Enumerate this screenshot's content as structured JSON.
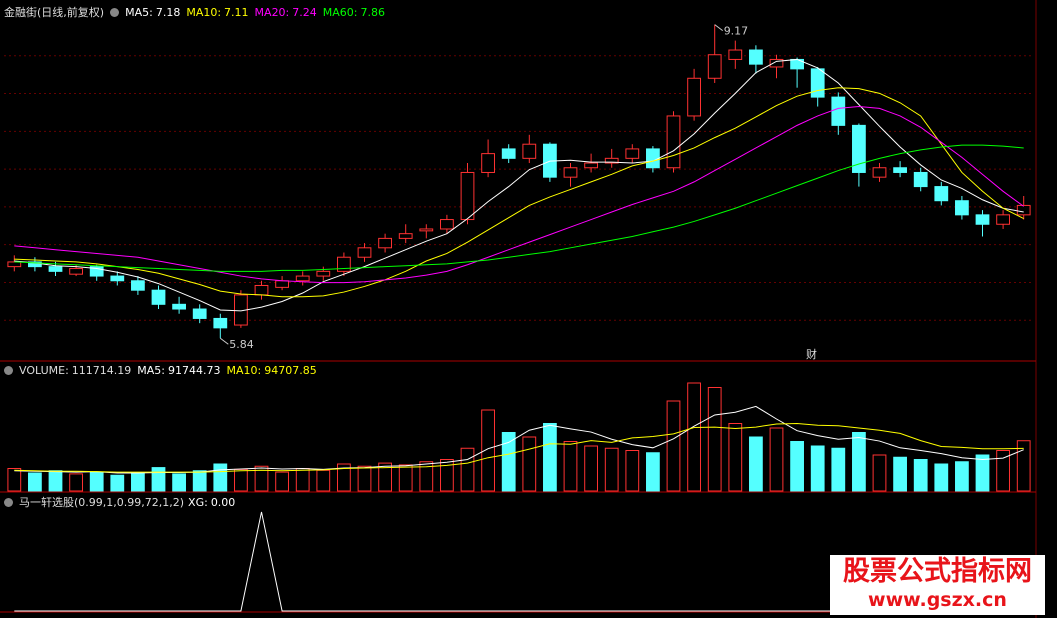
{
  "chart_data": [
    {
      "type": "candlestick",
      "title": "金融街(日线,前复权)",
      "up_color": "#ff3232",
      "down_color": "#54ffff",
      "ylim": [
        5.63,
        9.24
      ],
      "grid": true,
      "badge": "财",
      "candles": [
        [
          6.6,
          6.72,
          6.55,
          6.65
        ],
        [
          6.65,
          6.7,
          6.55,
          6.6
        ],
        [
          6.6,
          6.65,
          6.5,
          6.55
        ],
        [
          6.52,
          6.62,
          6.5,
          6.58
        ],
        [
          6.6,
          6.62,
          6.45,
          6.5
        ],
        [
          6.5,
          6.55,
          6.4,
          6.45
        ],
        [
          6.45,
          6.5,
          6.3,
          6.35
        ],
        [
          6.35,
          6.4,
          6.15,
          6.2
        ],
        [
          6.2,
          6.28,
          6.1,
          6.15
        ],
        [
          6.15,
          6.2,
          6.0,
          6.05
        ],
        [
          6.05,
          6.1,
          5.84,
          5.95
        ],
        [
          5.98,
          6.35,
          5.95,
          6.3
        ],
        [
          6.3,
          6.45,
          6.25,
          6.4
        ],
        [
          6.38,
          6.5,
          6.35,
          6.45
        ],
        [
          6.45,
          6.55,
          6.4,
          6.5
        ],
        [
          6.5,
          6.6,
          6.45,
          6.55
        ],
        [
          6.55,
          6.75,
          6.5,
          6.7
        ],
        [
          6.7,
          6.85,
          6.65,
          6.8
        ],
        [
          6.8,
          6.95,
          6.75,
          6.9
        ],
        [
          6.9,
          7.05,
          6.85,
          6.95
        ],
        [
          6.98,
          7.05,
          6.9,
          7.0
        ],
        [
          7.0,
          7.15,
          6.95,
          7.1
        ],
        [
          7.1,
          7.7,
          7.05,
          7.6
        ],
        [
          7.6,
          7.95,
          7.55,
          7.8
        ],
        [
          7.85,
          7.9,
          7.7,
          7.75
        ],
        [
          7.75,
          8.0,
          7.7,
          7.9
        ],
        [
          7.9,
          7.92,
          7.5,
          7.55
        ],
        [
          7.55,
          7.7,
          7.45,
          7.65
        ],
        [
          7.65,
          7.8,
          7.6,
          7.7
        ],
        [
          7.7,
          7.85,
          7.65,
          7.75
        ],
        [
          7.75,
          7.9,
          7.7,
          7.85
        ],
        [
          7.85,
          7.88,
          7.6,
          7.65
        ],
        [
          7.65,
          8.25,
          7.6,
          8.2
        ],
        [
          8.2,
          8.7,
          8.15,
          8.6
        ],
        [
          8.6,
          9.17,
          8.55,
          8.85
        ],
        [
          8.8,
          9.0,
          8.7,
          8.9
        ],
        [
          8.9,
          8.95,
          8.65,
          8.75
        ],
        [
          8.72,
          8.85,
          8.6,
          8.8
        ],
        [
          8.8,
          8.82,
          8.5,
          8.7
        ],
        [
          8.7,
          8.72,
          8.3,
          8.4
        ],
        [
          8.4,
          8.45,
          8.0,
          8.1
        ],
        [
          8.1,
          8.12,
          7.45,
          7.6
        ],
        [
          7.55,
          7.7,
          7.5,
          7.65
        ],
        [
          7.65,
          7.72,
          7.55,
          7.6
        ],
        [
          7.6,
          7.65,
          7.4,
          7.45
        ],
        [
          7.45,
          7.5,
          7.25,
          7.3
        ],
        [
          7.3,
          7.35,
          7.1,
          7.15
        ],
        [
          7.15,
          7.2,
          6.92,
          7.05
        ],
        [
          7.05,
          7.2,
          7.0,
          7.15
        ],
        [
          7.15,
          7.35,
          7.1,
          7.25
        ]
      ],
      "series": [
        {
          "name": "MA5:",
          "value_label": "7.18",
          "color": "#ffffff",
          "values": [
            6.66,
            6.64,
            6.61,
            6.6,
            6.58,
            6.54,
            6.49,
            6.42,
            6.33,
            6.24,
            6.14,
            6.13,
            6.17,
            6.23,
            6.32,
            6.44,
            6.52,
            6.6,
            6.69,
            6.78,
            6.87,
            6.95,
            7.11,
            7.29,
            7.45,
            7.63,
            7.72,
            7.73,
            7.71,
            7.71,
            7.7,
            7.72,
            7.83,
            8.01,
            8.23,
            8.44,
            8.66,
            8.78,
            8.8,
            8.71,
            8.55,
            8.32,
            8.09,
            7.87,
            7.68,
            7.52,
            7.43,
            7.31,
            7.22,
            7.18
          ]
        },
        {
          "name": "MA10:",
          "value_label": "7.11",
          "color": "#ffff00",
          "values": [
            6.68,
            6.67,
            6.66,
            6.65,
            6.63,
            6.6,
            6.57,
            6.53,
            6.47,
            6.41,
            6.34,
            6.31,
            6.3,
            6.28,
            6.28,
            6.29,
            6.33,
            6.39,
            6.46,
            6.55,
            6.66,
            6.74,
            6.86,
            6.99,
            7.12,
            7.25,
            7.34,
            7.42,
            7.5,
            7.58,
            7.67,
            7.72,
            7.78,
            7.86,
            7.97,
            8.07,
            8.19,
            8.31,
            8.41,
            8.47,
            8.5,
            8.49,
            8.44,
            8.34,
            8.2,
            7.9,
            7.6,
            7.4,
            7.22,
            7.11
          ]
        },
        {
          "name": "MA20:",
          "value_label": "7.24",
          "color": "#ff00ff",
          "values": [
            6.82,
            6.8,
            6.78,
            6.76,
            6.74,
            6.72,
            6.7,
            6.66,
            6.62,
            6.58,
            6.54,
            6.5,
            6.47,
            6.45,
            6.44,
            6.43,
            6.43,
            6.44,
            6.46,
            6.48,
            6.51,
            6.55,
            6.62,
            6.7,
            6.78,
            6.86,
            6.94,
            7.02,
            7.1,
            7.18,
            7.26,
            7.33,
            7.4,
            7.5,
            7.62,
            7.74,
            7.86,
            7.98,
            8.1,
            8.2,
            8.28,
            8.3,
            8.28,
            8.2,
            8.08,
            7.92,
            7.76,
            7.58,
            7.4,
            7.24
          ]
        },
        {
          "name": "MA60:",
          "value_label": "7.86",
          "color": "#00ff00",
          "values": [
            6.65,
            6.64,
            6.63,
            6.62,
            6.61,
            6.6,
            6.59,
            6.58,
            6.57,
            6.56,
            6.55,
            6.55,
            6.55,
            6.56,
            6.56,
            6.57,
            6.58,
            6.59,
            6.6,
            6.61,
            6.62,
            6.63,
            6.65,
            6.67,
            6.7,
            6.73,
            6.76,
            6.8,
            6.84,
            6.88,
            6.92,
            6.97,
            7.02,
            7.08,
            7.15,
            7.22,
            7.3,
            7.38,
            7.46,
            7.54,
            7.62,
            7.69,
            7.75,
            7.8,
            7.84,
            7.87,
            7.89,
            7.89,
            7.88,
            7.86
          ]
        }
      ]
    },
    {
      "type": "bar",
      "name": "VOLUME:",
      "value_label": "111714.19",
      "ylim": [
        0,
        260000
      ],
      "values": [
        50000,
        40000,
        45000,
        38000,
        42000,
        35000,
        40000,
        52000,
        38000,
        45000,
        60000,
        48000,
        55000,
        42000,
        50000,
        46000,
        60000,
        55000,
        62000,
        58000,
        65000,
        70000,
        95000,
        180000,
        130000,
        120000,
        150000,
        110000,
        100000,
        95000,
        90000,
        85000,
        200000,
        240000,
        230000,
        150000,
        120000,
        140000,
        110000,
        100000,
        95000,
        130000,
        80000,
        75000,
        70000,
        60000,
        65000,
        80000,
        90000,
        111714.19
      ],
      "series": [
        {
          "name": "MA5:",
          "value_label": "91744.73",
          "color": "#ffffff",
          "values": [
            45000,
            44000,
            43000,
            42000,
            43000,
            40000,
            40000,
            41000,
            41000,
            42000,
            47000,
            49000,
            51000,
            49000,
            50000,
            48000,
            51000,
            52000,
            55000,
            56000,
            60000,
            64000,
            70000,
            94000,
            108000,
            135000,
            146000,
            138000,
            131000,
            115000,
            103000,
            96000,
            116000,
            144000,
            169000,
            175000,
            188000,
            160000,
            134000,
            123000,
            115000,
            119000,
            111000,
            96000,
            90000,
            83000,
            74000,
            70000,
            73000,
            91744.73
          ]
        },
        {
          "name": "MA10:",
          "value_label": "94707.85",
          "color": "#ffff00",
          "values": [
            46000,
            45000,
            44000,
            44000,
            43000,
            42000,
            42000,
            42000,
            42000,
            42000,
            43000,
            45000,
            46000,
            45000,
            46000,
            47000,
            50000,
            51000,
            52000,
            53000,
            54000,
            57000,
            62000,
            74000,
            82000,
            93000,
            105000,
            104000,
            112000,
            108000,
            118000,
            121000,
            127000,
            141000,
            142000,
            139000,
            142000,
            149000,
            150000,
            146000,
            145000,
            140000,
            135000,
            128000,
            112000,
            99000,
            97000,
            94000,
            94000,
            94707.85
          ]
        }
      ]
    },
    {
      "type": "line",
      "title": "马一轩选股(0.99,1,0.99,72,1,2)",
      "ylim": [
        0,
        1.07
      ],
      "series": [
        {
          "name": "XG:",
          "value_label": "0.00",
          "color": "#ffffff",
          "values": [
            0,
            0,
            0,
            0,
            0,
            0,
            0,
            0,
            0,
            0,
            0,
            0,
            1,
            0,
            0,
            0,
            0,
            0,
            0,
            0,
            0,
            0,
            0,
            0,
            0,
            0,
            0,
            0,
            0,
            0,
            0,
            0,
            0,
            0,
            0,
            0,
            0,
            0,
            0,
            0,
            0,
            0,
            0,
            0,
            0,
            0,
            0,
            0,
            0,
            0
          ]
        }
      ]
    }
  ],
  "watermark": {
    "title": "股票公式指标网",
    "url": "www.gszx.cn"
  }
}
